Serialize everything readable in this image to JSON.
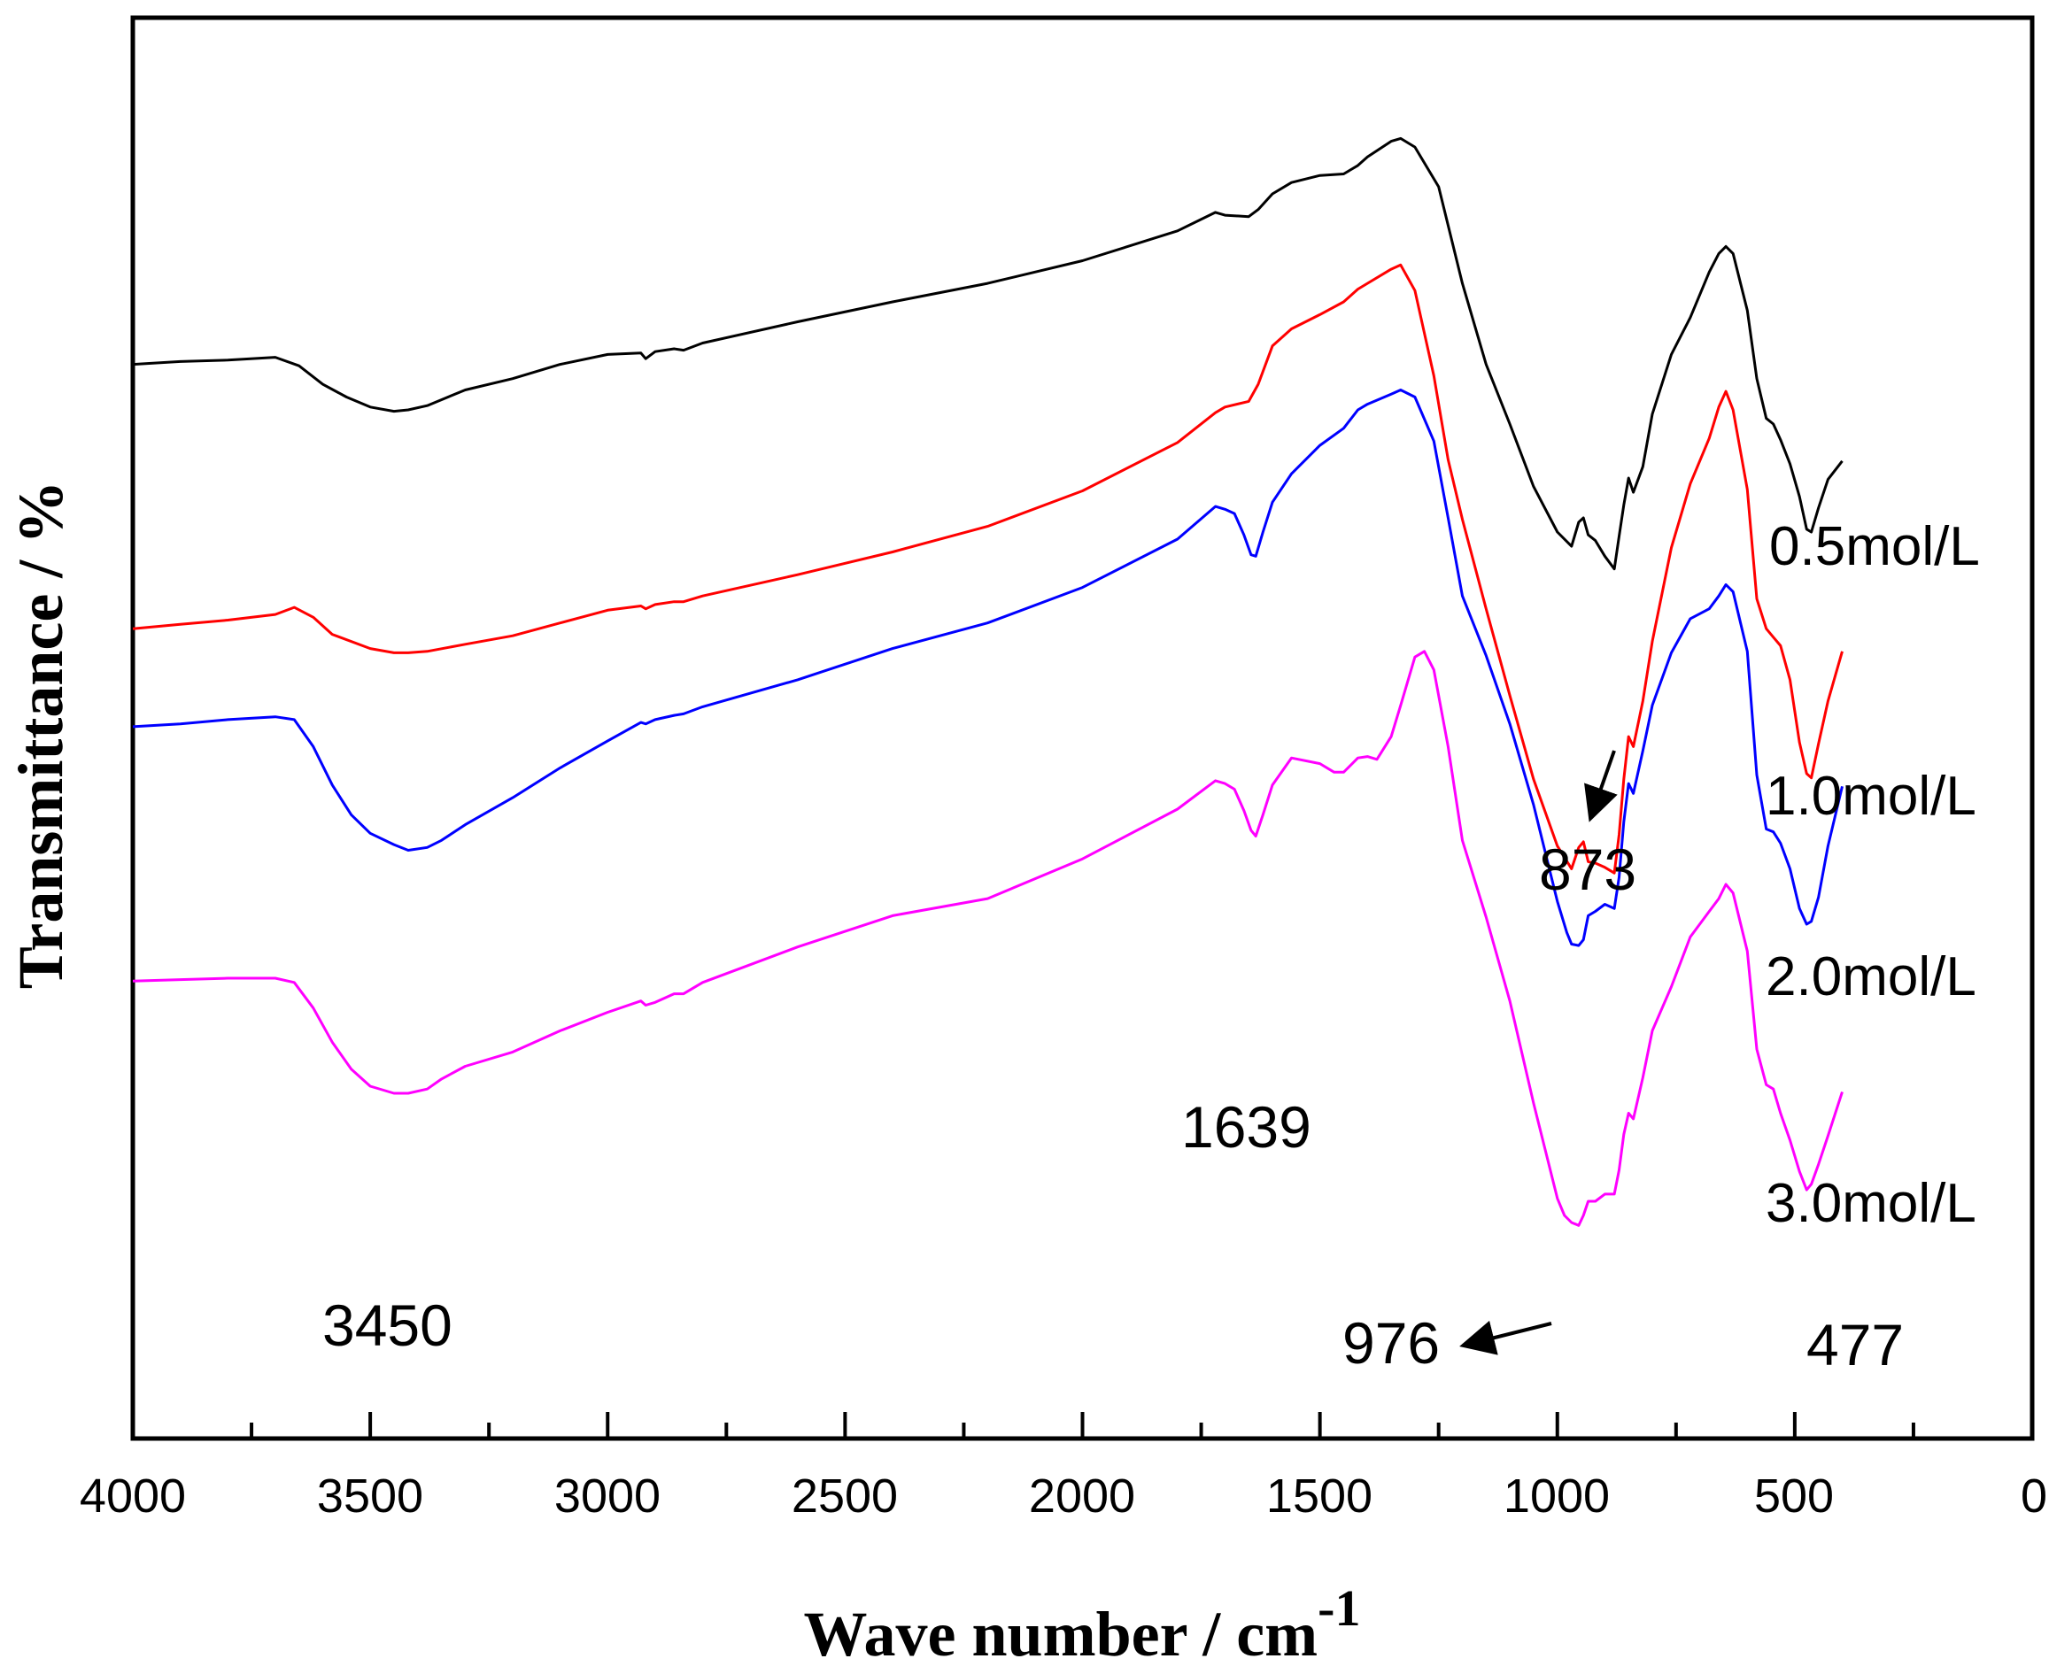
{
  "chart_data": {
    "type": "line",
    "title": "",
    "xlabel": "Wave number / cm",
    "xlabel_superscript": "-1",
    "ylabel": "Transmittance / %",
    "xlim": [
      4000,
      0
    ],
    "ylim": [
      0,
      100
    ],
    "x_ticks": [
      "4000",
      "3500",
      "3000",
      "2500",
      "2000",
      "1500",
      "1000",
      "500",
      "0"
    ],
    "y_ticks_shown": false,
    "grid": false,
    "legend": "inline labels at right end of each curve",
    "colors": {
      "black": "#000000",
      "red": "#ff0000",
      "blue": "#0000ff",
      "magenta": "#ff00ff"
    },
    "series": [
      {
        "name": "0.5mol/L",
        "color": "#000000",
        "x": [
          4000,
          3900,
          3800,
          3700,
          3650,
          3600,
          3550,
          3500,
          3450,
          3420,
          3380,
          3300,
          3200,
          3100,
          3000,
          2930,
          2920,
          2900,
          2860,
          2840,
          2800,
          2600,
          2400,
          2200,
          2000,
          1800,
          1720,
          1700,
          1650,
          1630,
          1600,
          1560,
          1500,
          1450,
          1420,
          1400,
          1350,
          1330,
          1300,
          1250,
          1200,
          1150,
          1100,
          1050,
          1000,
          970,
          955,
          945,
          935,
          920,
          900,
          880,
          870,
          860,
          850,
          840,
          820,
          800,
          760,
          720,
          680,
          660,
          645,
          630,
          600,
          580,
          560,
          545,
          530,
          510,
          490,
          475,
          465,
          450,
          430,
          400
        ],
        "values": [
          75.6,
          75.8,
          75.9,
          76.1,
          75.5,
          74.2,
          73.3,
          72.6,
          72.3,
          72.4,
          72.7,
          73.8,
          74.6,
          75.6,
          76.3,
          76.4,
          76.0,
          76.5,
          76.7,
          76.6,
          77.1,
          78.6,
          80.0,
          81.3,
          82.9,
          85.0,
          86.3,
          86.1,
          86.0,
          86.5,
          87.6,
          88.4,
          88.9,
          89.0,
          89.6,
          90.2,
          91.3,
          91.5,
          90.9,
          88.1,
          81.3,
          75.6,
          71.4,
          67.0,
          63.8,
          62.8,
          64.5,
          64.8,
          63.6,
          63.2,
          62.1,
          61.2,
          63.5,
          65.7,
          67.6,
          66.6,
          68.4,
          72.1,
          76.3,
          78.9,
          82.1,
          83.4,
          83.9,
          83.4,
          79.4,
          74.6,
          71.8,
          71.4,
          70.3,
          68.6,
          66.3,
          64.0,
          63.8,
          65.5,
          67.5,
          68.8
        ]
      },
      {
        "name": "1.0mol/L",
        "color": "#ff0000",
        "x": [
          4000,
          3900,
          3800,
          3700,
          3660,
          3620,
          3580,
          3500,
          3450,
          3420,
          3380,
          3300,
          3200,
          3100,
          3000,
          2930,
          2920,
          2900,
          2860,
          2840,
          2800,
          2600,
          2400,
          2200,
          2000,
          1800,
          1720,
          1700,
          1650,
          1630,
          1600,
          1560,
          1500,
          1450,
          1420,
          1400,
          1350,
          1330,
          1300,
          1260,
          1230,
          1200,
          1150,
          1100,
          1050,
          1000,
          970,
          955,
          945,
          935,
          920,
          900,
          880,
          870,
          860,
          850,
          840,
          820,
          800,
          760,
          720,
          680,
          660,
          645,
          630,
          600,
          580,
          560,
          545,
          530,
          510,
          490,
          475,
          465,
          450,
          430,
          400
        ],
        "values": [
          57.0,
          57.3,
          57.6,
          58.0,
          58.5,
          57.8,
          56.6,
          55.6,
          55.3,
          55.3,
          55.4,
          55.9,
          56.5,
          57.4,
          58.3,
          58.6,
          58.4,
          58.7,
          58.9,
          58.9,
          59.3,
          60.8,
          62.4,
          64.2,
          66.7,
          70.1,
          72.2,
          72.6,
          73.0,
          74.2,
          76.9,
          78.1,
          79.1,
          80.0,
          80.9,
          81.3,
          82.3,
          82.6,
          80.8,
          74.8,
          68.9,
          64.7,
          58.4,
          52.3,
          46.4,
          41.7,
          40.1,
          41.6,
          42.0,
          40.6,
          40.5,
          40.2,
          39.8,
          42.5,
          46.4,
          49.4,
          48.7,
          51.9,
          56.1,
          62.7,
          67.2,
          70.4,
          72.6,
          73.7,
          72.4,
          66.8,
          59.1,
          57.0,
          56.4,
          55.8,
          53.4,
          49.0,
          46.8,
          46.5,
          48.9,
          51.9,
          55.4
        ]
      },
      {
        "name": "2.0mol/L",
        "color": "#0000ff",
        "x": [
          4000,
          3900,
          3800,
          3700,
          3660,
          3620,
          3580,
          3540,
          3500,
          3450,
          3420,
          3380,
          3350,
          3300,
          3200,
          3100,
          3000,
          2930,
          2920,
          2900,
          2860,
          2840,
          2800,
          2600,
          2400,
          2200,
          2000,
          1800,
          1720,
          1700,
          1680,
          1660,
          1645,
          1635,
          1620,
          1600,
          1560,
          1500,
          1450,
          1420,
          1400,
          1350,
          1330,
          1300,
          1260,
          1230,
          1200,
          1150,
          1100,
          1050,
          1000,
          980,
          970,
          955,
          945,
          935,
          920,
          900,
          880,
          870,
          860,
          850,
          840,
          820,
          800,
          760,
          720,
          680,
          660,
          645,
          630,
          600,
          580,
          560,
          545,
          530,
          510,
          490,
          475,
          465,
          450,
          430,
          400
        ],
        "values": [
          50.1,
          50.3,
          50.6,
          50.8,
          50.6,
          48.7,
          46.0,
          43.9,
          42.6,
          41.8,
          41.4,
          41.6,
          42.1,
          43.2,
          45.1,
          47.2,
          49.1,
          50.4,
          50.3,
          50.6,
          50.9,
          51.0,
          51.5,
          53.4,
          55.6,
          57.4,
          59.9,
          63.3,
          65.6,
          65.4,
          65.1,
          63.6,
          62.2,
          62.1,
          63.8,
          65.9,
          67.9,
          69.9,
          71.1,
          72.4,
          72.8,
          73.5,
          73.8,
          73.3,
          70.2,
          64.8,
          59.3,
          55.1,
          50.3,
          44.6,
          37.8,
          35.6,
          34.8,
          34.7,
          35.1,
          36.8,
          37.1,
          37.6,
          37.3,
          39.5,
          43.4,
          46.1,
          45.4,
          48.4,
          51.6,
          55.3,
          57.7,
          58.4,
          59.3,
          60.1,
          59.6,
          55.4,
          46.7,
          42.9,
          42.7,
          41.9,
          40.1,
          37.3,
          36.2,
          36.4,
          38.1,
          41.7,
          45.9
        ]
      },
      {
        "name": "3.0mol/L",
        "color": "#ff00ff",
        "x": [
          4000,
          3900,
          3800,
          3700,
          3660,
          3620,
          3580,
          3540,
          3500,
          3450,
          3420,
          3380,
          3350,
          3300,
          3200,
          3100,
          3000,
          2930,
          2920,
          2900,
          2860,
          2840,
          2800,
          2600,
          2400,
          2200,
          2000,
          1800,
          1720,
          1700,
          1680,
          1660,
          1645,
          1635,
          1620,
          1600,
          1560,
          1500,
          1470,
          1450,
          1420,
          1400,
          1380,
          1350,
          1330,
          1300,
          1280,
          1260,
          1230,
          1200,
          1150,
          1100,
          1050,
          1000,
          985,
          970,
          955,
          945,
          935,
          920,
          900,
          880,
          870,
          860,
          850,
          840,
          820,
          800,
          760,
          720,
          680,
          660,
          645,
          630,
          600,
          580,
          560,
          545,
          530,
          510,
          490,
          475,
          465,
          450,
          430,
          400
        ],
        "values": [
          32.2,
          32.3,
          32.4,
          32.4,
          32.1,
          30.3,
          27.9,
          26.0,
          24.8,
          24.3,
          24.3,
          24.6,
          25.3,
          26.2,
          27.2,
          28.7,
          30.0,
          30.8,
          30.5,
          30.7,
          31.3,
          31.3,
          32.1,
          34.6,
          36.8,
          38.0,
          40.8,
          44.3,
          46.3,
          46.1,
          45.7,
          44.2,
          42.8,
          42.4,
          43.9,
          46.0,
          47.9,
          47.5,
          46.9,
          46.9,
          47.9,
          48.0,
          47.8,
          49.4,
          51.6,
          55.0,
          55.4,
          54.1,
          48.7,
          42.1,
          36.7,
          30.8,
          23.6,
          16.9,
          15.7,
          15.2,
          15.0,
          15.7,
          16.7,
          16.7,
          17.2,
          17.2,
          18.9,
          21.4,
          22.9,
          22.5,
          25.4,
          28.7,
          31.8,
          35.3,
          37.1,
          38.0,
          39.0,
          38.4,
          34.3,
          27.4,
          24.9,
          24.6,
          22.9,
          21.0,
          18.8,
          17.5,
          17.9,
          19.3,
          21.3,
          24.4
        ]
      }
    ],
    "annotations": [
      {
        "text": "873",
        "arrow": true
      },
      {
        "text": "1639",
        "arrow": false
      },
      {
        "text": "3450",
        "arrow": false
      },
      {
        "text": "976",
        "arrow": true
      },
      {
        "text": "477",
        "arrow": false
      }
    ]
  }
}
